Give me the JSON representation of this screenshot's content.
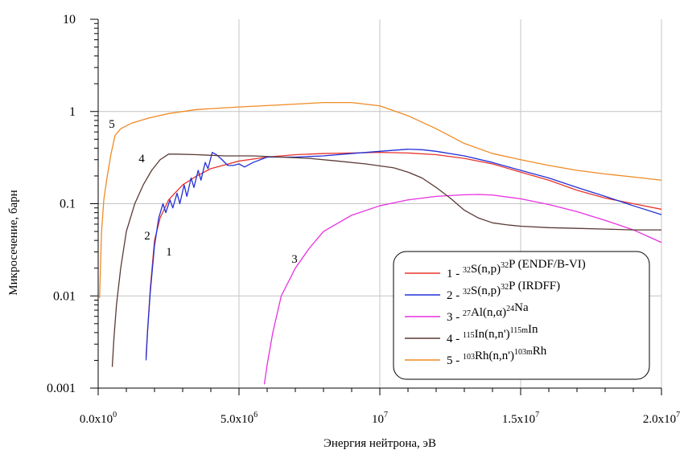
{
  "chart_data": {
    "type": "line",
    "xlabel": "Энергия нейтрона, эВ",
    "ylabel": "Микросечение, барн",
    "xlim": [
      0,
      20000000
    ],
    "ylim": [
      0.001,
      10
    ],
    "yscale": "log",
    "grid": true,
    "legend_placement": "bottom-right",
    "x_tick_values": [
      0,
      5000000,
      10000000,
      15000000,
      20000000
    ],
    "x_tick_labels": [
      {
        "mantissa": "0.0x10",
        "exp": "0"
      },
      {
        "mantissa": "5.0x10",
        "exp": "6"
      },
      {
        "mantissa": "10",
        "exp": "7"
      },
      {
        "mantissa": "1.5x10",
        "exp": "7"
      },
      {
        "mantissa": "2.0x10",
        "exp": "7"
      }
    ],
    "y_tick_values": [
      0.001,
      0.01,
      0.1,
      1,
      10
    ],
    "y_tick_labels": [
      "0.001",
      "0.01",
      "0.1",
      "1",
      "10"
    ],
    "series": [
      {
        "name": "1 - 32S(n,p)32P (ENDF/B-VI)",
        "legend_parts": [
          {
            "t": "1 - "
          },
          {
            "sup": "32"
          },
          {
            "t": "S(n,p)"
          },
          {
            "sup": "32"
          },
          {
            "t": "P (ENDF/B-VI)"
          }
        ],
        "curve_label": "1",
        "color": "#e8342c",
        "x": [
          1700000,
          1750000,
          1850000,
          2000000,
          2200000,
          2500000,
          3000000,
          3500000,
          4000000,
          5000000,
          6000000,
          7000000,
          8000000,
          9000000,
          10000000,
          11000000,
          12000000,
          13000000,
          14000000,
          15000000,
          16000000,
          17000000,
          18000000,
          19000000,
          20000000
        ],
        "y": [
          0.0022,
          0.004,
          0.012,
          0.04,
          0.07,
          0.11,
          0.16,
          0.2,
          0.24,
          0.29,
          0.32,
          0.34,
          0.35,
          0.355,
          0.36,
          0.355,
          0.34,
          0.31,
          0.27,
          0.22,
          0.18,
          0.14,
          0.115,
          0.1,
          0.087
        ]
      },
      {
        "name": "2 - 32S(n,p)32P (IRDFF)",
        "legend_parts": [
          {
            "t": "2 - "
          },
          {
            "sup": "32"
          },
          {
            "t": "S(n,p)"
          },
          {
            "sup": "32"
          },
          {
            "t": "P (IRDFF)"
          }
        ],
        "curve_label": "2",
        "color": "#2230d8",
        "x": [
          1700000,
          1750000,
          1850000,
          2000000,
          2150000,
          2300000,
          2400000,
          2550000,
          2650000,
          2800000,
          2900000,
          3050000,
          3150000,
          3300000,
          3400000,
          3550000,
          3650000,
          3800000,
          3900000,
          4050000,
          4200000,
          4400000,
          4600000,
          4800000,
          5000000,
          5200000,
          5500000,
          6000000,
          7000000,
          8000000,
          9000000,
          10000000,
          11000000,
          11500000,
          12000000,
          13000000,
          14000000,
          15000000,
          16000000,
          17000000,
          18000000,
          19000000,
          20000000
        ],
        "y": [
          0.002,
          0.004,
          0.011,
          0.035,
          0.07,
          0.1,
          0.08,
          0.11,
          0.09,
          0.13,
          0.1,
          0.16,
          0.12,
          0.19,
          0.15,
          0.23,
          0.18,
          0.28,
          0.24,
          0.36,
          0.34,
          0.3,
          0.26,
          0.26,
          0.27,
          0.25,
          0.28,
          0.32,
          0.32,
          0.33,
          0.35,
          0.37,
          0.39,
          0.385,
          0.37,
          0.33,
          0.28,
          0.23,
          0.19,
          0.15,
          0.12,
          0.095,
          0.076
        ]
      },
      {
        "name": "3 - 27Al(n,α)24Na",
        "legend_parts": [
          {
            "t": "3 - "
          },
          {
            "sup": "27"
          },
          {
            "t": "Al(n,α)"
          },
          {
            "sup": "24"
          },
          {
            "t": "Na"
          }
        ],
        "curve_label": "3",
        "color": "#e830e0",
        "x": [
          5900000,
          6000000,
          6200000,
          6500000,
          7000000,
          7500000,
          8000000,
          9000000,
          10000000,
          11000000,
          12000000,
          13000000,
          13500000,
          14000000,
          15000000,
          16000000,
          17000000,
          18000000,
          19000000,
          20000000
        ],
        "y": [
          0.0011,
          0.0018,
          0.004,
          0.01,
          0.02,
          0.033,
          0.05,
          0.075,
          0.095,
          0.11,
          0.12,
          0.125,
          0.126,
          0.124,
          0.113,
          0.098,
          0.082,
          0.066,
          0.052,
          0.038
        ]
      },
      {
        "name": "4 - 115In(n,n')115mIn",
        "legend_parts": [
          {
            "t": "4 - "
          },
          {
            "sup": "115"
          },
          {
            "t": "In(n,n')"
          },
          {
            "sup": "115m"
          },
          {
            "t": "In"
          }
        ],
        "curve_label": "4",
        "color": "#5a3a36",
        "x": [
          500000,
          560000,
          650000,
          800000,
          1000000,
          1300000,
          1600000,
          1900000,
          2200000,
          2500000,
          2800000,
          3500000,
          4500000,
          5500000,
          6500000,
          7500000,
          8500000,
          9500000,
          10500000,
          11000000,
          11500000,
          12000000,
          12500000,
          13000000,
          13500000,
          14000000,
          14500000,
          15000000,
          16000000,
          17000000,
          18000000,
          19000000,
          20000000
        ],
        "y": [
          0.0017,
          0.0035,
          0.008,
          0.02,
          0.05,
          0.1,
          0.16,
          0.23,
          0.3,
          0.345,
          0.345,
          0.34,
          0.33,
          0.33,
          0.32,
          0.31,
          0.29,
          0.27,
          0.245,
          0.22,
          0.19,
          0.15,
          0.115,
          0.085,
          0.07,
          0.062,
          0.059,
          0.057,
          0.055,
          0.054,
          0.053,
          0.052,
          0.052
        ]
      },
      {
        "name": "5 - 103Rh(n,n')103mRh",
        "legend_parts": [
          {
            "t": "5 - "
          },
          {
            "sup": "103"
          },
          {
            "t": "Rh(n,n')"
          },
          {
            "sup": "103m"
          },
          {
            "t": "Rh"
          }
        ],
        "curve_label": "5",
        "color": "#f08a24",
        "x": [
          50000,
          80000,
          120000,
          200000,
          300000,
          450000,
          600000,
          800000,
          1200000,
          1800000,
          2500000,
          3500000,
          5000000,
          6500000,
          8000000,
          9000000,
          10000000,
          11000000,
          12000000,
          13000000,
          14000000,
          15000000,
          16000000,
          17000000,
          18000000,
          19000000,
          20000000
        ],
        "y": [
          0.0095,
          0.02,
          0.05,
          0.11,
          0.18,
          0.34,
          0.55,
          0.65,
          0.75,
          0.85,
          0.95,
          1.05,
          1.12,
          1.18,
          1.25,
          1.25,
          1.15,
          0.9,
          0.65,
          0.45,
          0.35,
          0.3,
          0.26,
          0.23,
          0.21,
          0.195,
          0.18
        ]
      }
    ]
  }
}
